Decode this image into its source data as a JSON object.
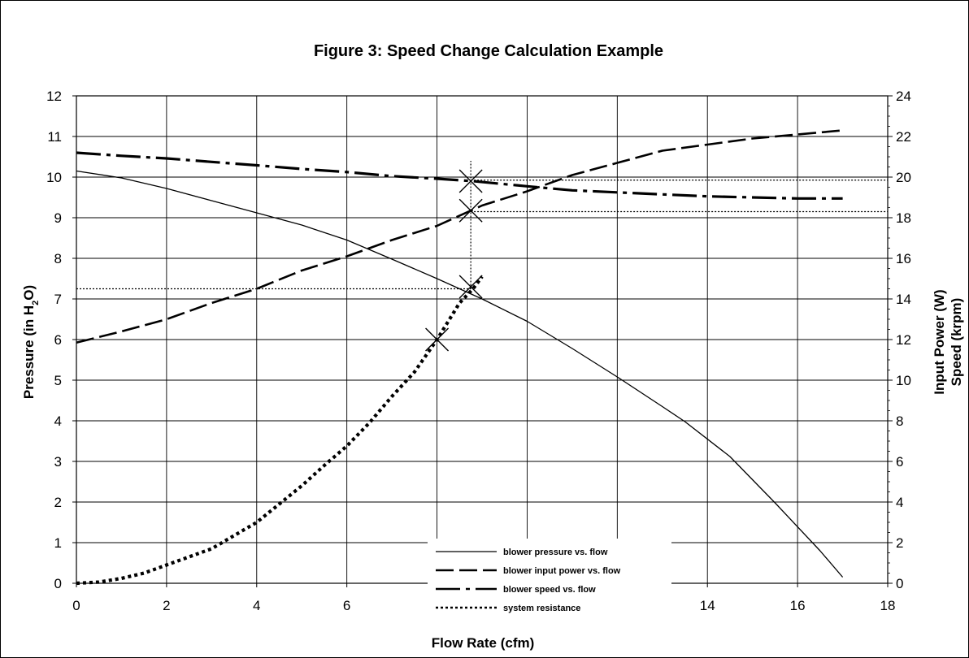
{
  "chart_data": {
    "type": "line",
    "title": "Figure 3:  Speed Change Calculation Example",
    "xlabel": "Flow Rate (cfm)",
    "ylabel": {
      "main": "Pressure (in H",
      "sub": "2",
      "tail": "O)"
    },
    "y2label": [
      "Input Power (W)",
      "Speed (krpm)"
    ],
    "xlim": [
      0,
      18
    ],
    "ylim": [
      0,
      12
    ],
    "y2lim": [
      0,
      24
    ],
    "xticks": [
      "0",
      "2",
      "4",
      "6",
      "8",
      "10",
      "12",
      "14",
      "16",
      "18"
    ],
    "yticks": [
      "0",
      "1",
      "2",
      "3",
      "4",
      "5",
      "6",
      "7",
      "8",
      "9",
      "10",
      "11",
      "12"
    ],
    "y2ticks": [
      "0",
      "2",
      "4",
      "6",
      "8",
      "10",
      "12",
      "14",
      "16",
      "18",
      "20",
      "22",
      "24"
    ],
    "grid": true,
    "legend_position": "bottom-center",
    "series": [
      {
        "name": "blower pressure vs. flow",
        "axis": "left",
        "style": "solid",
        "x": [
          0,
          1,
          2,
          3,
          4,
          5,
          6,
          7,
          8,
          9,
          10,
          11,
          12,
          13,
          13.5,
          14.5,
          15.5,
          16.5,
          17
        ],
        "y": [
          10.15,
          9.98,
          9.72,
          9.42,
          9.12,
          8.82,
          8.45,
          7.98,
          7.5,
          7.0,
          6.45,
          5.78,
          5.08,
          4.35,
          3.98,
          3.12,
          1.98,
          0.8,
          0.15
        ]
      },
      {
        "name": "blower input power vs. flow",
        "axis": "right",
        "style": "dashed",
        "x": [
          0,
          1,
          2,
          3,
          4,
          5,
          6,
          7,
          8,
          9,
          10,
          11,
          12,
          13,
          14,
          15,
          16,
          17
        ],
        "y": [
          11.85,
          12.4,
          13.0,
          13.8,
          14.5,
          15.4,
          16.1,
          16.9,
          17.6,
          18.6,
          19.3,
          20.1,
          20.7,
          21.3,
          21.6,
          21.9,
          22.1,
          22.3
        ]
      },
      {
        "name": "blower speed vs. flow",
        "axis": "right",
        "style": "dash-dot",
        "x": [
          0,
          1,
          2,
          3,
          4,
          5,
          6,
          7,
          8,
          8.8,
          10,
          11,
          12,
          13,
          14,
          15,
          16,
          17
        ],
        "y": [
          21.2,
          21.05,
          20.92,
          20.75,
          20.58,
          20.4,
          20.25,
          20.05,
          19.92,
          19.8,
          19.55,
          19.35,
          19.25,
          19.15,
          19.05,
          19.0,
          18.95,
          18.95
        ]
      },
      {
        "name": "system resistance",
        "axis": "left",
        "style": "dotted",
        "x": [
          0,
          0.5,
          1,
          1.5,
          2,
          3,
          4,
          5,
          5.5,
          6,
          6.5,
          7,
          7.5,
          8,
          8.5,
          8.8,
          9
        ],
        "y": [
          0,
          0.03,
          0.12,
          0.25,
          0.45,
          0.85,
          1.5,
          2.4,
          2.9,
          3.38,
          3.95,
          4.6,
          5.2,
          6.0,
          6.9,
          7.25,
          7.55
        ]
      }
    ],
    "markers": [
      {
        "x": 8,
        "y": 6.0,
        "axis": "left"
      },
      {
        "x": 8.75,
        "y": 7.3,
        "axis": "left"
      },
      {
        "x": 8.75,
        "y": 18.35,
        "axis": "right"
      },
      {
        "x": 8.75,
        "y": 19.8,
        "axis": "right"
      }
    ],
    "reference_lines": [
      {
        "orientation": "horizontal",
        "axis": "left",
        "value": 7.25,
        "from_x": 0,
        "to_x": 8.75
      },
      {
        "orientation": "vertical",
        "value": 8.75,
        "from_y": 7.25,
        "to_y": 10.4,
        "axis": "left"
      },
      {
        "orientation": "horizontal",
        "axis": "right",
        "value": 19.85,
        "from_x": 8.75,
        "to_x": 18
      },
      {
        "orientation": "horizontal",
        "axis": "right",
        "value": 18.3,
        "from_x": 8.75,
        "to_x": 18
      }
    ]
  }
}
